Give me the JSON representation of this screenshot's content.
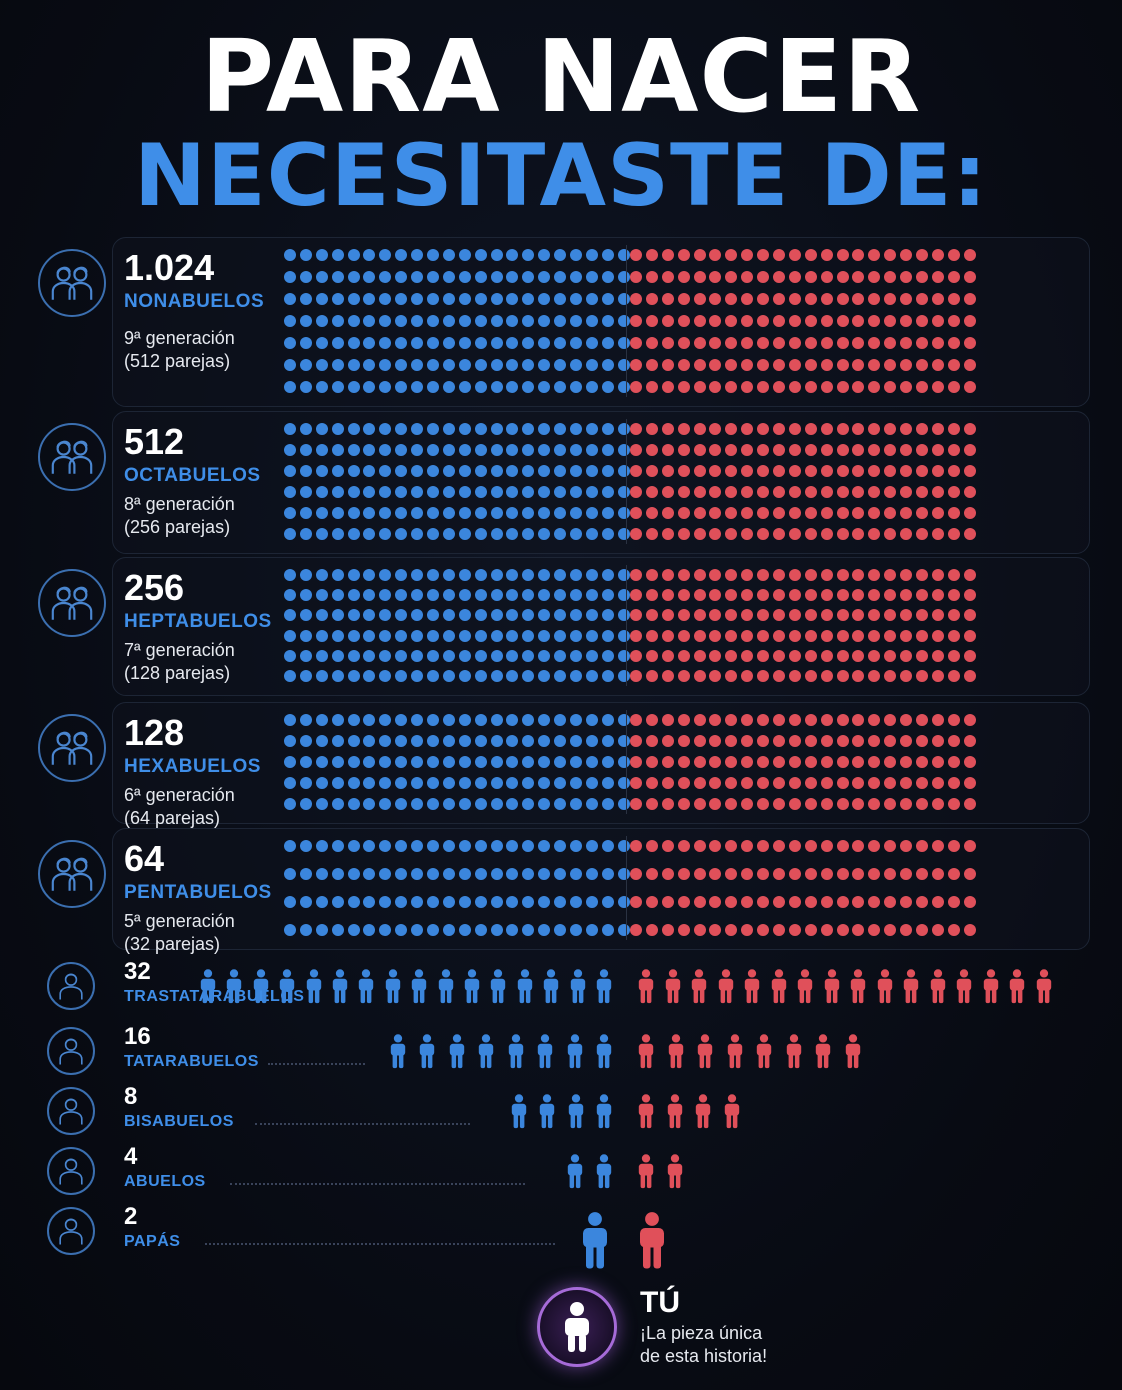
{
  "title": {
    "line1": "PARA NACER",
    "line2": "NECESITASTE DE:"
  },
  "colors": {
    "male": "#3b86dd",
    "female": "#e0505a",
    "accent": "#3f8ee8",
    "you": "#a66bd8"
  },
  "generations": [
    {
      "count": "1.024",
      "name": "NONABUELOS",
      "generation": "9ª generación",
      "pairs": "(512 parejas)",
      "icon": "couple-icon",
      "value": 1024
    },
    {
      "count": "512",
      "name": "OCTABUELOS",
      "generation": "8ª generación",
      "pairs": "(256 parejas)",
      "icon": "couple-icon",
      "value": 512
    },
    {
      "count": "256",
      "name": "HEPTABUELOS",
      "generation": "7ª generación",
      "pairs": "(128 parejas)",
      "icon": "couple-icon",
      "value": 256
    },
    {
      "count": "128",
      "name": "HEXABUELOS",
      "generation": "6ª generación",
      "pairs": "(64 parejas)",
      "icon": "couple-icon",
      "value": 128
    },
    {
      "count": "64",
      "name": "PENTABUELOS",
      "generation": "5ª generación",
      "pairs": "(32 parejas)",
      "icon": "couple-icon",
      "value": 64
    },
    {
      "count": "32",
      "name": "TRASTATARABUELOS",
      "icon": "person-icon",
      "value": 32
    },
    {
      "count": "16",
      "name": "TATARABUELOS",
      "icon": "person-icon",
      "value": 16
    },
    {
      "count": "8",
      "name": "BISABUELOS",
      "icon": "person-icon",
      "value": 8
    },
    {
      "count": "4",
      "name": "ABUELOS",
      "icon": "person-icon",
      "value": 4
    },
    {
      "count": "2",
      "name": "PAPÁS",
      "icon": "person-icon",
      "value": 2
    }
  ],
  "you": {
    "label": "TÚ",
    "line1": "¡La pieza única",
    "line2": "de esta historia!",
    "icon": "child-icon"
  }
}
